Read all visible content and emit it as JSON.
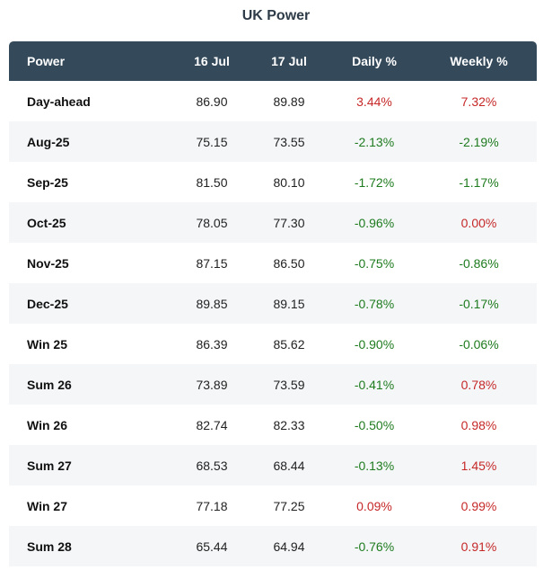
{
  "title": "UK Power",
  "columns": [
    "Power",
    "16 Jul",
    "17 Jul",
    "Daily %",
    "Weekly %"
  ],
  "colors": {
    "header_bg": "#34495a",
    "negative": "#1e7b1e",
    "positive": "#c62828"
  },
  "rows": [
    {
      "name": "Day-ahead",
      "d1": "86.90",
      "d2": "89.89",
      "daily": "3.44%",
      "weekly": "7.32%"
    },
    {
      "name": "Aug-25",
      "d1": "75.15",
      "d2": "73.55",
      "daily": "-2.13%",
      "weekly": "-2.19%"
    },
    {
      "name": "Sep-25",
      "d1": "81.50",
      "d2": "80.10",
      "daily": "-1.72%",
      "weekly": "-1.17%"
    },
    {
      "name": "Oct-25",
      "d1": "78.05",
      "d2": "77.30",
      "daily": "-0.96%",
      "weekly": "0.00%"
    },
    {
      "name": "Nov-25",
      "d1": "87.15",
      "d2": "86.50",
      "daily": "-0.75%",
      "weekly": "-0.86%"
    },
    {
      "name": "Dec-25",
      "d1": "89.85",
      "d2": "89.15",
      "daily": "-0.78%",
      "weekly": "-0.17%"
    },
    {
      "name": "Win 25",
      "d1": "86.39",
      "d2": "85.62",
      "daily": "-0.90%",
      "weekly": "-0.06%"
    },
    {
      "name": "Sum 26",
      "d1": "73.89",
      "d2": "73.59",
      "daily": "-0.41%",
      "weekly": "0.78%"
    },
    {
      "name": "Win 26",
      "d1": "82.74",
      "d2": "82.33",
      "daily": "-0.50%",
      "weekly": "0.98%"
    },
    {
      "name": "Sum 27",
      "d1": "68.53",
      "d2": "68.44",
      "daily": "-0.13%",
      "weekly": "1.45%"
    },
    {
      "name": "Win 27",
      "d1": "77.18",
      "d2": "77.25",
      "daily": "0.09%",
      "weekly": "0.99%"
    },
    {
      "name": "Sum 28",
      "d1": "65.44",
      "d2": "64.94",
      "daily": "-0.76%",
      "weekly": "0.91%"
    }
  ]
}
